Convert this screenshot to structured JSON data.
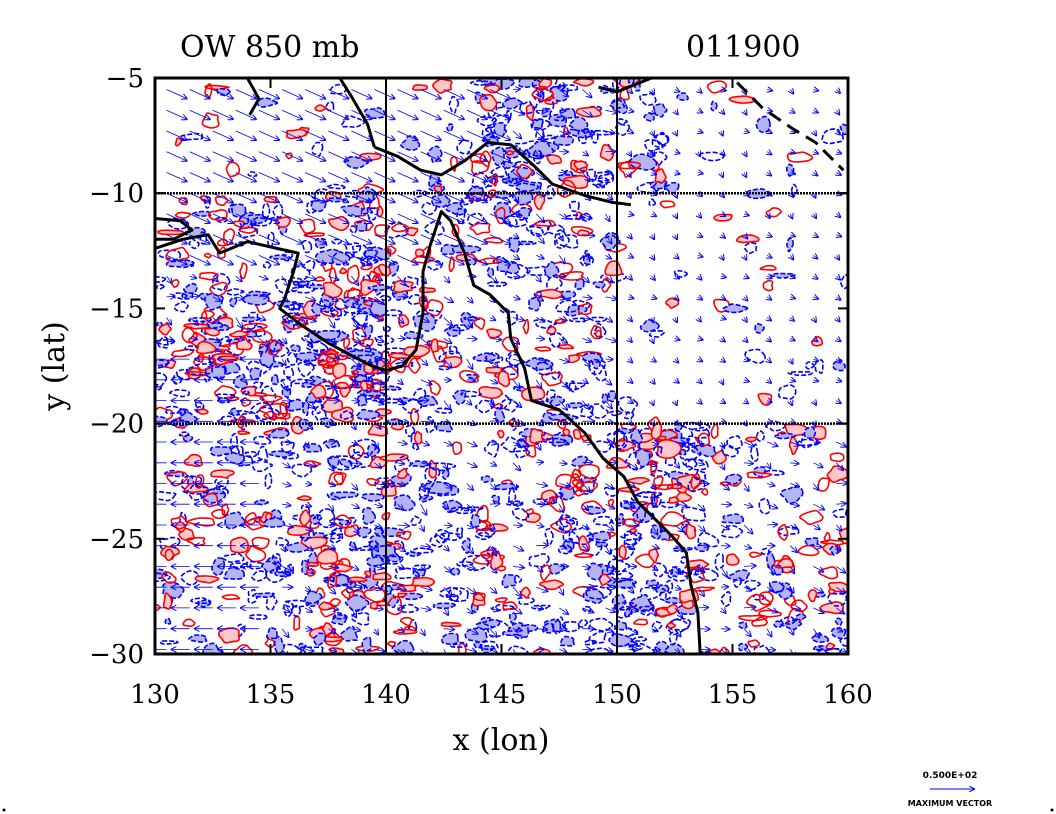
{
  "chart_data": {
    "type": "contour",
    "title": "OW 850 mb",
    "timestamp": "011900",
    "xlabel": "x (lon)",
    "ylabel": "y (lat)",
    "xlim": [
      130,
      160
    ],
    "ylim": [
      -30,
      -5
    ],
    "xticks": [
      130,
      135,
      140,
      145,
      150,
      155,
      160
    ],
    "yticks": [
      -5,
      -10,
      -15,
      -20,
      -25,
      -30
    ],
    "grid_lon": [
      140,
      150
    ],
    "grid_lat": [
      -10,
      -20
    ],
    "colors": {
      "positive": "#ff0000",
      "positive_fill": "#ffc8c8",
      "negative": "#0000ff",
      "negative_fill": "#b4b4f0",
      "coast": "#000000",
      "vector": "#0000ff"
    },
    "vector_key": {
      "value": "0.500E+02",
      "label": "MAXIMUM VECTOR"
    }
  }
}
